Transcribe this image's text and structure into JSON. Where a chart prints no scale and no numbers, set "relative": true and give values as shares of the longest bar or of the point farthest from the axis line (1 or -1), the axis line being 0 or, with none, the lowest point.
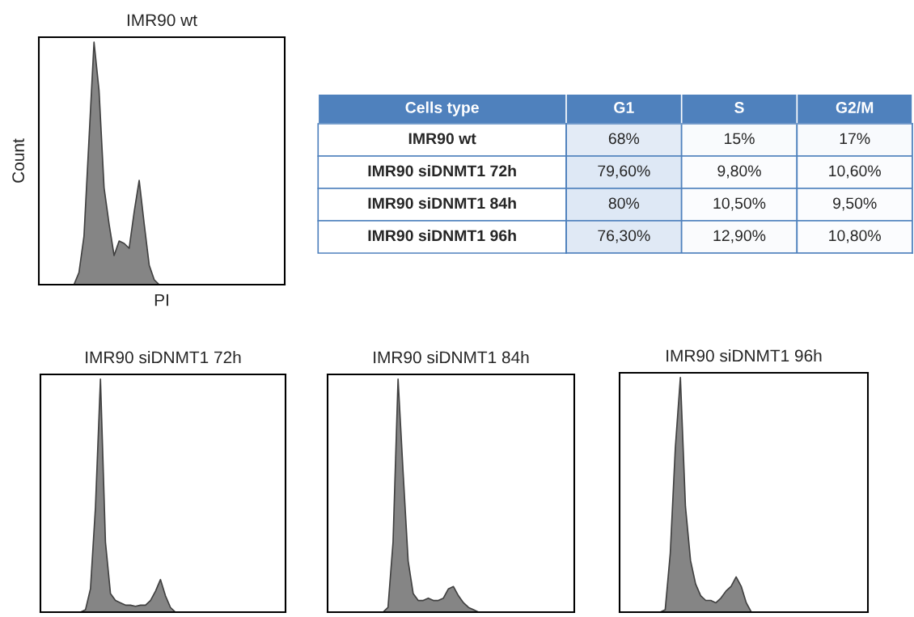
{
  "chart_data": [
    {
      "type": "area",
      "title": "IMR90 wt",
      "xlabel": "PI",
      "ylabel": "Count",
      "relative": true,
      "categories": [
        null,
        null,
        null,
        null,
        null,
        null,
        null,
        null,
        null,
        null,
        null,
        null,
        null,
        null,
        null,
        null,
        null,
        null,
        null,
        null,
        null,
        null,
        null,
        null,
        null,
        null,
        null,
        null,
        null,
        null,
        null,
        null,
        null,
        null,
        null,
        null,
        null,
        null,
        null,
        null,
        null,
        null,
        null,
        null,
        null,
        null,
        null,
        null,
        null,
        null
      ],
      "series": [
        {
          "color": "#707070",
          "values": [
            0,
            0,
            0,
            0,
            0,
            0,
            0,
            0,
            0.05,
            0.2,
            0.6,
            1.0,
            0.8,
            0.4,
            0.25,
            0.12,
            0.18,
            0.17,
            0.15,
            0.3,
            0.43,
            0.25,
            0.08,
            0.02,
            0,
            0,
            0,
            0,
            0,
            0,
            0,
            0,
            0,
            0,
            0,
            0,
            0,
            0,
            0,
            0,
            0,
            0,
            0,
            0,
            0,
            0,
            0,
            0,
            0,
            0
          ]
        }
      ]
    },
    {
      "type": "heatmap",
      "ylabel": "Cells type",
      "categories": [
        "G1",
        "S",
        "G2/M"
      ],
      "y_categories": [
        "IMR90 wt",
        "IMR90 siDNMT1 72h",
        "IMR90 siDNMT1 84h",
        "IMR90 siDNMT1 96h"
      ],
      "cells": [
        [
          68,
          15,
          17
        ],
        [
          79.6,
          9.8,
          10.6
        ],
        [
          80,
          10.5,
          9.5
        ],
        [
          76.3,
          12.9,
          10.8
        ]
      ],
      "cell_labels": [
        [
          "68%",
          "15%",
          "17%"
        ],
        [
          "79,60%",
          "9,80%",
          "10,60%"
        ],
        [
          "80%",
          "10,50%",
          "9,50%"
        ],
        [
          "76,30%",
          "12,90%",
          "10,80%"
        ]
      ]
    },
    {
      "type": "area",
      "title": "IMR90 siDNMT1 72h",
      "relative": true,
      "categories": [
        null,
        null,
        null,
        null,
        null,
        null,
        null,
        null,
        null,
        null,
        null,
        null,
        null,
        null,
        null,
        null,
        null,
        null,
        null,
        null,
        null,
        null,
        null,
        null,
        null,
        null,
        null,
        null,
        null,
        null,
        null,
        null,
        null,
        null,
        null,
        null,
        null,
        null,
        null,
        null,
        null,
        null,
        null,
        null,
        null,
        null,
        null,
        null,
        null,
        null
      ],
      "series": [
        {
          "color": "#707070",
          "values": [
            0,
            0,
            0,
            0,
            0,
            0,
            0,
            0,
            0,
            0.01,
            0.1,
            0.45,
            1.0,
            0.3,
            0.08,
            0.05,
            0.04,
            0.03,
            0.03,
            0.025,
            0.03,
            0.03,
            0.05,
            0.09,
            0.14,
            0.07,
            0.02,
            0,
            0,
            0,
            0,
            0,
            0,
            0,
            0,
            0,
            0,
            0,
            0,
            0,
            0,
            0,
            0,
            0,
            0,
            0,
            0,
            0,
            0,
            0
          ]
        }
      ]
    },
    {
      "type": "area",
      "title": "IMR90 siDNMT1 84h",
      "relative": true,
      "categories": [
        null,
        null,
        null,
        null,
        null,
        null,
        null,
        null,
        null,
        null,
        null,
        null,
        null,
        null,
        null,
        null,
        null,
        null,
        null,
        null,
        null,
        null,
        null,
        null,
        null,
        null,
        null,
        null,
        null,
        null,
        null,
        null,
        null,
        null,
        null,
        null,
        null,
        null,
        null,
        null,
        null,
        null,
        null,
        null,
        null,
        null,
        null,
        null,
        null,
        null
      ],
      "series": [
        {
          "color": "#707070",
          "values": [
            0,
            0,
            0,
            0,
            0,
            0,
            0,
            0,
            0,
            0,
            0,
            0,
            0.02,
            0.3,
            1.0,
            0.6,
            0.22,
            0.08,
            0.05,
            0.05,
            0.06,
            0.05,
            0.05,
            0.06,
            0.1,
            0.11,
            0.07,
            0.04,
            0.02,
            0.01,
            0,
            0,
            0,
            0,
            0,
            0,
            0,
            0,
            0,
            0,
            0,
            0,
            0,
            0,
            0,
            0,
            0,
            0,
            0,
            0
          ]
        }
      ]
    },
    {
      "type": "area",
      "title": "IMR90 siDNMT1 96h",
      "relative": true,
      "categories": [
        null,
        null,
        null,
        null,
        null,
        null,
        null,
        null,
        null,
        null,
        null,
        null,
        null,
        null,
        null,
        null,
        null,
        null,
        null,
        null,
        null,
        null,
        null,
        null,
        null,
        null,
        null,
        null,
        null,
        null,
        null,
        null,
        null,
        null,
        null,
        null,
        null,
        null,
        null,
        null,
        null,
        null,
        null,
        null,
        null,
        null,
        null,
        null,
        null,
        null
      ],
      "series": [
        {
          "color": "#707070",
          "values": [
            0,
            0,
            0,
            0,
            0,
            0,
            0,
            0,
            0,
            0.01,
            0.25,
            0.7,
            1.0,
            0.45,
            0.22,
            0.12,
            0.07,
            0.05,
            0.05,
            0.04,
            0.06,
            0.09,
            0.11,
            0.15,
            0.11,
            0.04,
            0,
            0,
            0,
            0,
            0,
            0,
            0,
            0,
            0,
            0,
            0,
            0,
            0,
            0,
            0,
            0,
            0,
            0,
            0,
            0,
            0,
            0,
            0,
            0
          ]
        }
      ]
    }
  ]
}
